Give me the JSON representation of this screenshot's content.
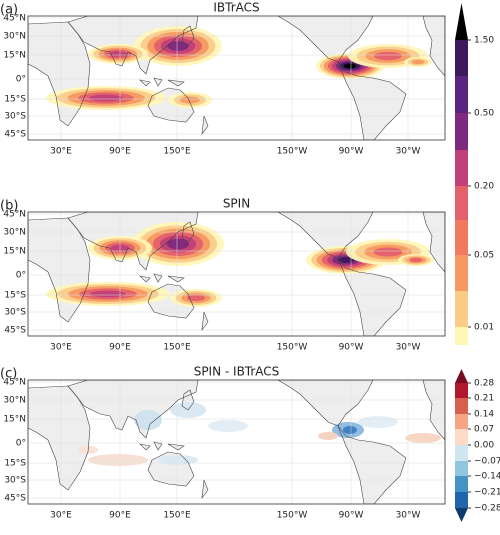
{
  "panels": [
    {
      "label": "(a)",
      "title": "IBTrACS",
      "lat_ticks": [
        "45°N",
        "30°N",
        "15°N",
        "0°",
        "15°S",
        "30°S",
        "45°S"
      ],
      "lon_ticks": [
        "30°E",
        "90°E",
        "150°E",
        "150°W",
        "90°W",
        "30°W"
      ]
    },
    {
      "label": "(b)",
      "title": "SPIN",
      "lat_ticks": [
        "45°N",
        "30°N",
        "15°N",
        "0°",
        "15°S",
        "30°S",
        "45°S"
      ],
      "lon_ticks": [
        "30°E",
        "90°E",
        "150°E",
        "150°W",
        "90°W",
        "30°W"
      ]
    },
    {
      "label": "(c)",
      "title": "SPIN - IBTrACS",
      "lat_ticks": [
        "45°N",
        "30°N",
        "15°N",
        "0°",
        "15°S",
        "30°S",
        "45°S"
      ],
      "lon_ticks": [
        "30°E",
        "90°E",
        "150°E",
        "150°W",
        "90°W",
        "30°W"
      ]
    }
  ],
  "colorbars": [
    {
      "ticks": [
        "1.50",
        "0.50",
        "0.20",
        "0.05",
        "0.01"
      ]
    },
    {
      "ticks": [
        "0.28",
        "0.21",
        "0.14",
        "0.07",
        "0.00",
        "−0.07",
        "−0.14",
        "−0.21",
        "−0.28"
      ]
    }
  ]
}
